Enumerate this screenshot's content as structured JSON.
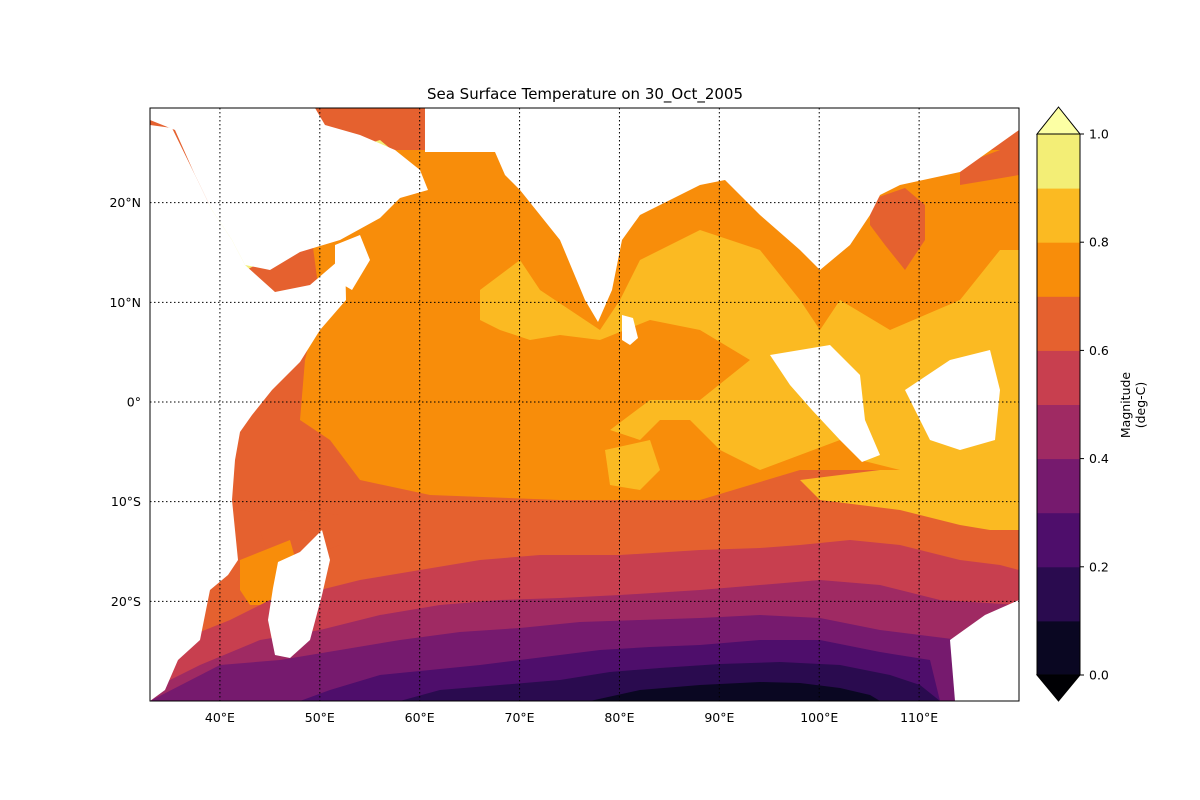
{
  "chart_data": {
    "type": "heatmap",
    "title": "Sea Surface Temperature on 30_Oct_2005",
    "x_ticks": [
      "40°E",
      "50°E",
      "60°E",
      "70°E",
      "80°E",
      "90°E",
      "100°E",
      "110°E"
    ],
    "y_ticks": [
      "20°N",
      "10°N",
      "0°",
      "10°S",
      "20°S"
    ],
    "x_ticks_deg": [
      40,
      50,
      60,
      70,
      80,
      90,
      100,
      110
    ],
    "y_ticks_deg": [
      20,
      10,
      0,
      -10,
      -20
    ],
    "xlim": [
      33,
      120
    ],
    "ylim": [
      -30,
      29.5
    ],
    "grid": true,
    "grid_style": "dotted",
    "colorbar": {
      "label_line1": "Magnitude",
      "label_line2": "(deg-C)",
      "tick_labels": [
        "0.0",
        "0.2",
        "0.4",
        "0.6",
        "0.8",
        "1.0"
      ],
      "levels": [
        0.0,
        0.1,
        0.2,
        0.3,
        0.4,
        0.5,
        0.6,
        0.7,
        0.8,
        0.9,
        1.0
      ],
      "extend": "both",
      "colors": [
        "#0a0722",
        "#2a0b4f",
        "#4e0e6b",
        "#761a6e",
        "#9f2a63",
        "#c83f4f",
        "#e5612f",
        "#f88d0a",
        "#fbba22",
        "#f3ee76"
      ],
      "under_color": "#000004",
      "over_color": "#fcffa4"
    },
    "land_color": "#ffffff"
  }
}
